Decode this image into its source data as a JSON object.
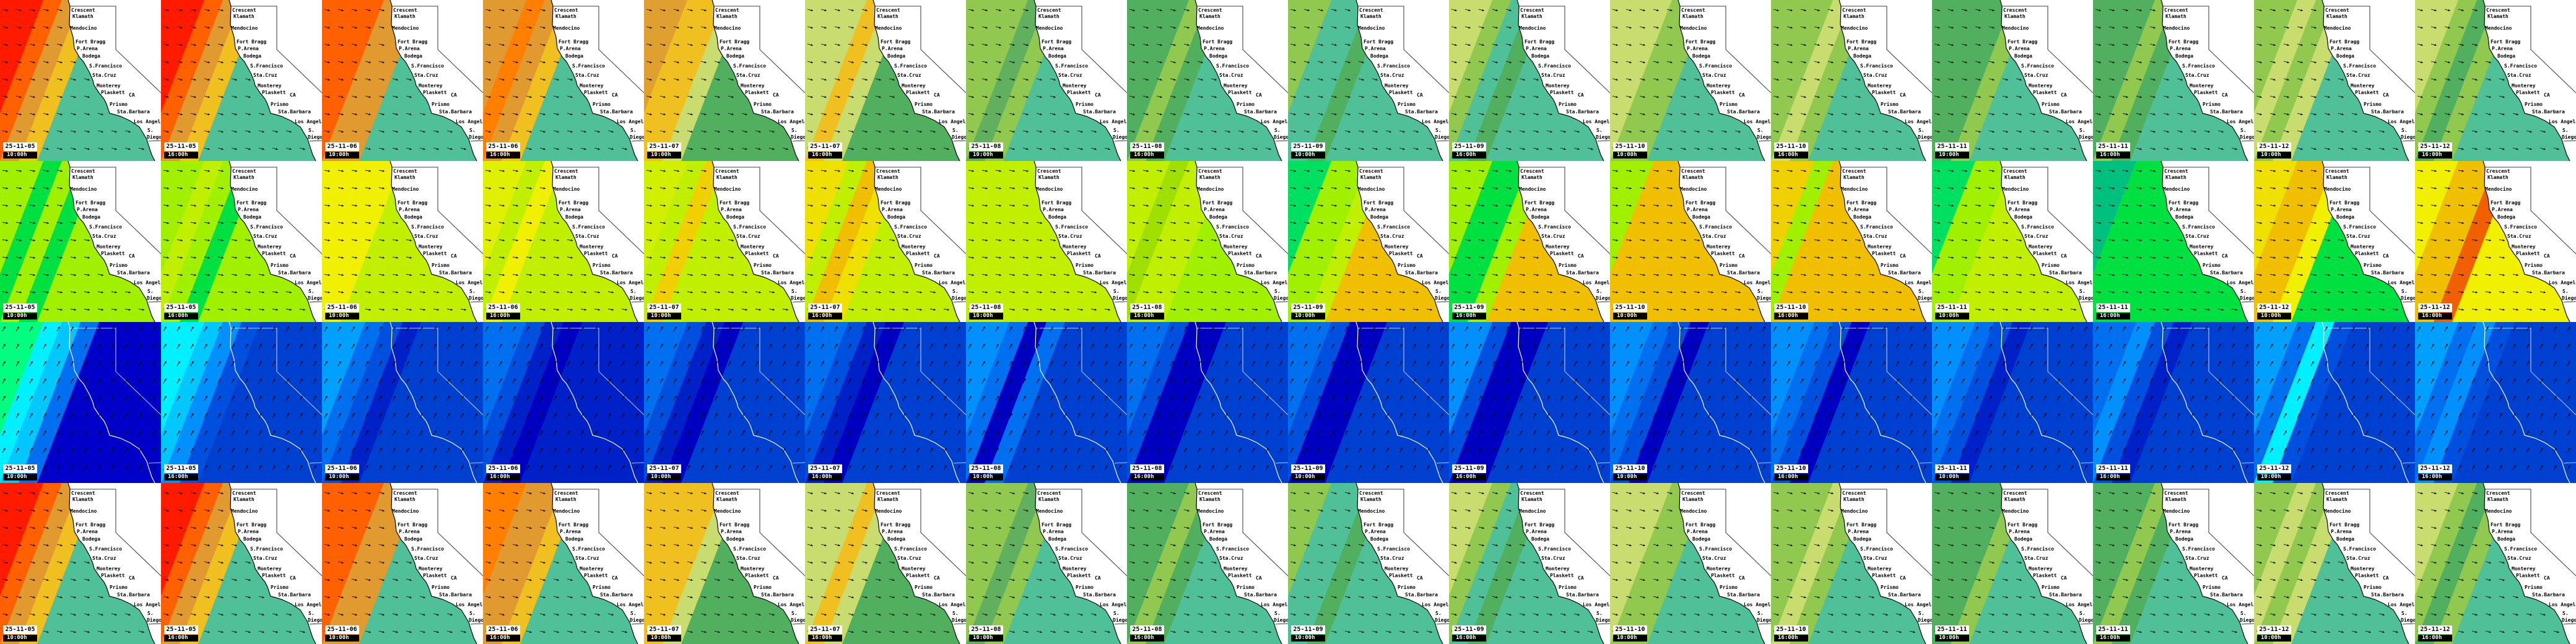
{
  "places": [
    {
      "name": "Crescent"
    },
    {
      "name": "Klamath"
    },
    {
      "name": "Mendocino"
    },
    {
      "name": "Fort Bragg"
    },
    {
      "name": "P.Arena"
    },
    {
      "name": "Bodega"
    },
    {
      "name": "S.Francisco"
    },
    {
      "name": "Sta.Cruz"
    },
    {
      "name": "Monterey"
    },
    {
      "name": "Plaskett"
    },
    {
      "name": "CA"
    },
    {
      "name": "Prismo"
    },
    {
      "name": "Sta.Barbara"
    },
    {
      "name": "Los Angeles"
    },
    {
      "name": "S."
    },
    {
      "name": "Diego"
    }
  ],
  "columns": [
    {
      "date": "25-11-05",
      "time": "10:00h"
    },
    {
      "date": "25-11-05",
      "time": "16:00h"
    },
    {
      "date": "25-11-06",
      "time": "10:00h"
    },
    {
      "date": "25-11-06",
      "time": "16:00h"
    },
    {
      "date": "25-11-07",
      "time": "10:00h"
    },
    {
      "date": "25-11-07",
      "time": "16:00h"
    },
    {
      "date": "25-11-08",
      "time": "10:00h"
    },
    {
      "date": "25-11-08",
      "time": "16:00h"
    },
    {
      "date": "25-11-09",
      "time": "10:00h"
    },
    {
      "date": "25-11-09",
      "time": "16:00h"
    },
    {
      "date": "25-11-10",
      "time": "10:00h"
    },
    {
      "date": "25-11-10",
      "time": "16:00h"
    },
    {
      "date": "25-11-11",
      "time": "10:00h"
    },
    {
      "date": "25-11-11",
      "time": "16:00h"
    },
    {
      "date": "25-11-12",
      "time": "10:00h"
    },
    {
      "date": "25-11-12",
      "time": "16:00h"
    }
  ],
  "rows": [
    {
      "kind": "wave",
      "show_places": true,
      "arrow_direction_deg": 15,
      "land_color": "#ffffff",
      "colors": [
        [
          "#ff1a00",
          "#ff6000",
          "#e09a30",
          "#f0c020",
          "#50c098"
        ],
        [
          "#ff1a00",
          "#ff6000",
          "#e09a30",
          "#f0c020",
          "#50c098"
        ],
        [
          "#ff6000",
          "#ff6000",
          "#e09a30",
          "#e09a30",
          "#50c098"
        ],
        [
          "#e09a30",
          "#ff8000",
          "#e09a30",
          "#f0c020",
          "#50c098"
        ],
        [
          "#e0a030",
          "#f0c020",
          "#f0c020",
          "#c8dc70",
          "#50b060"
        ],
        [
          "#c8dc70",
          "#c8dc70",
          "#f0c020",
          "#c8dc70",
          "#50b060"
        ],
        [
          "#90c850",
          "#90c850",
          "#60b060",
          "#90c850",
          "#50c098"
        ],
        [
          "#50b060",
          "#50b060",
          "#90c850",
          "#50b060",
          "#50c098"
        ],
        [
          "#90c850",
          "#50c098",
          "#50c098",
          "#50b060",
          "#50c098"
        ],
        [
          "#c8dc70",
          "#90c850",
          "#50c098",
          "#50b060",
          "#50c098"
        ],
        [
          "#c8dc70",
          "#c8dc70",
          "#90c850",
          "#90c850",
          "#50c098"
        ],
        [
          "#90c850",
          "#90c850",
          "#c8dc70",
          "#90c850",
          "#50c098"
        ],
        [
          "#50b060",
          "#50b060",
          "#50b060",
          "#90c850",
          "#50c098"
        ],
        [
          "#50b060",
          "#50b060",
          "#90c850",
          "#50b060",
          "#50c098"
        ],
        [
          "#90c850",
          "#c8dc70",
          "#90c850",
          "#c8dc70",
          "#50c098"
        ],
        [
          "#c8dc70",
          "#90c850",
          "#50b060",
          "#90c850",
          "#50c098"
        ]
      ]
    },
    {
      "kind": "period",
      "show_places": true,
      "arrow_direction_deg": 10,
      "land_color": "#ffffff",
      "colors": [
        [
          "#a0f000",
          "#00e040",
          "#a0f000",
          "#00e040",
          "#a0f000"
        ],
        [
          "#a0f000",
          "#c0f000",
          "#a0f000",
          "#00e040",
          "#a0f000"
        ],
        [
          "#f0f000",
          "#f0f000",
          "#f0f000",
          "#c0f000",
          "#c0f000"
        ],
        [
          "#e0f000",
          "#c0f000",
          "#f0f000",
          "#c0f000",
          "#c0f000"
        ],
        [
          "#d0f000",
          "#c0f000",
          "#f0d000",
          "#c0f000",
          "#c0f000"
        ],
        [
          "#f0e000",
          "#c0f000",
          "#f0c000",
          "#f0e000",
          "#c0f000"
        ],
        [
          "#c0f000",
          "#c0f000",
          "#c0f000",
          "#c0f000",
          "#c0f000"
        ],
        [
          "#c0f000",
          "#a0e000",
          "#c0f000",
          "#c0f000",
          "#a0f000"
        ],
        [
          "#00e060",
          "#a0f000",
          "#a0f000",
          "#c0f000",
          "#f0c000"
        ],
        [
          "#a0f000",
          "#00e040",
          "#00e040",
          "#a0f000",
          "#f0c000"
        ],
        [
          "#a0f000",
          "#f0c000",
          "#f0c000",
          "#f0c000",
          "#f0c000"
        ],
        [
          "#f0d000",
          "#a0f000",
          "#f0c000",
          "#f0c000",
          "#f0c000"
        ],
        [
          "#00e060",
          "#a0f000",
          "#a0f000",
          "#c0f000",
          "#c0f000"
        ],
        [
          "#00c080",
          "#00e040",
          "#00e040",
          "#00e040",
          "#00e040"
        ],
        [
          "#f0e000",
          "#f0c000",
          "#f0c000",
          "#f0f000",
          "#00e040"
        ],
        [
          "#f0f000",
          "#f0c000",
          "#f0c000",
          "#f06000",
          "#f0f000"
        ]
      ]
    },
    {
      "kind": "wind",
      "show_places": false,
      "arrow_direction_deg": -60,
      "land_color": null,
      "colors": [
        [
          "#00ff80",
          "#00f0ff",
          "#00c8ff",
          "#0070f0",
          "#0000c8"
        ],
        [
          "#00f0ff",
          "#00c8ff",
          "#0090ff",
          "#0050e0",
          "#0040d0"
        ],
        [
          "#00a0ff",
          "#0070f0",
          "#0050e0",
          "#0020c8",
          "#0040d0"
        ],
        [
          "#0070f0",
          "#0050e0",
          "#0020c8",
          "#0000c0",
          "#0020c8"
        ],
        [
          "#0070f0",
          "#0050e0",
          "#0020c8",
          "#0000c0",
          "#0040d0"
        ],
        [
          "#0070f0",
          "#0050e0",
          "#0020c8",
          "#0000c0",
          "#0040d0"
        ],
        [
          "#0090ff",
          "#0070f0",
          "#0000c0",
          "#0070f0",
          "#0040d0"
        ],
        [
          "#0070f0",
          "#0050e0",
          "#0000c0",
          "#0000c0",
          "#0040d0"
        ],
        [
          "#0070f0",
          "#0050e0",
          "#0000c0",
          "#0000c0",
          "#0040d0"
        ],
        [
          "#0090ff",
          "#0050e0",
          "#0000c0",
          "#0000c0",
          "#0040d0"
        ],
        [
          "#0090ff",
          "#0070f0",
          "#0050e0",
          "#0000c0",
          "#0040d0"
        ],
        [
          "#0090ff",
          "#0070f0",
          "#0050e0",
          "#0000c0",
          "#0040d0"
        ],
        [
          "#0090ff",
          "#0070f0",
          "#0050e0",
          "#0020c8",
          "#0040d0"
        ],
        [
          "#0070f0",
          "#0090ff",
          "#0050e0",
          "#0020c8",
          "#0040d0"
        ],
        [
          "#00a0ff",
          "#0070f0",
          "#00f0ff",
          "#0050e0",
          "#0040d0"
        ],
        [
          "#00a0ff",
          "#0070f0",
          "#0090ff",
          "#0050e0",
          "#0040d0"
        ]
      ]
    },
    {
      "kind": "wave",
      "show_places": true,
      "arrow_direction_deg": 15,
      "land_color": "#ffffff",
      "colors": [
        [
          "#ff1a00",
          "#ff6000",
          "#e09a30",
          "#f0c020",
          "#50c098"
        ],
        [
          "#ff1a00",
          "#ff6000",
          "#e09a30",
          "#f0c020",
          "#50c098"
        ],
        [
          "#ff6000",
          "#ff6000",
          "#e09a30",
          "#e09a30",
          "#50c098"
        ],
        [
          "#ff8000",
          "#e09a30",
          "#e09a30",
          "#f0c020",
          "#50c098"
        ],
        [
          "#f0c020",
          "#f0c020",
          "#f0c020",
          "#c8dc70",
          "#50b060"
        ],
        [
          "#c8dc70",
          "#c8dc70",
          "#f0c020",
          "#c8dc70",
          "#50b060"
        ],
        [
          "#90c850",
          "#90c850",
          "#60b060",
          "#90c850",
          "#50c098"
        ],
        [
          "#50b060",
          "#50b060",
          "#90c850",
          "#50b060",
          "#50c098"
        ],
        [
          "#90c850",
          "#50c098",
          "#50c098",
          "#50b060",
          "#50c098"
        ],
        [
          "#c8dc70",
          "#90c850",
          "#50c098",
          "#50b060",
          "#50c098"
        ],
        [
          "#c8dc70",
          "#c8dc70",
          "#90c850",
          "#90c850",
          "#50c098"
        ],
        [
          "#90c850",
          "#90c850",
          "#c8dc70",
          "#90c850",
          "#50c098"
        ],
        [
          "#50b060",
          "#50b060",
          "#50b060",
          "#90c850",
          "#50c098"
        ],
        [
          "#50b060",
          "#50b060",
          "#90c850",
          "#50b060",
          "#50c098"
        ],
        [
          "#90c850",
          "#c8dc70",
          "#90c850",
          "#c8dc70",
          "#50c098"
        ],
        [
          "#c8dc70",
          "#90c850",
          "#50b060",
          "#90c850",
          "#50c098"
        ]
      ]
    }
  ]
}
